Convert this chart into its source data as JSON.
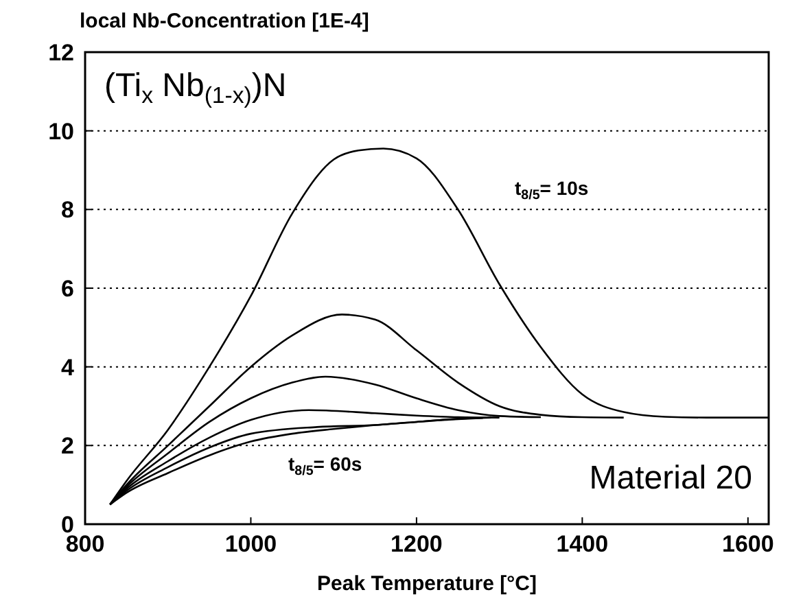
{
  "chart_data": {
    "type": "line",
    "ylabel": "local Nb-Concentration [1E-4]",
    "xlabel": "Peak Temperature [°C]",
    "annotations": [
      "(Ti$_{x}$ Nb$_{(1-x)}$)N",
      "t$_{8/5}$= 10s",
      "t$_{8/5}$= 60s",
      "Material 20"
    ],
    "xlim": [
      800,
      1625
    ],
    "xticks": [
      800,
      1000,
      1200,
      1400,
      1600
    ],
    "ylim": [
      0,
      12
    ],
    "yticks": [
      0,
      2,
      4,
      6,
      8,
      10,
      12
    ],
    "grid": "y",
    "line_style": "solid",
    "marker": "none",
    "series": [
      {
        "color": "#000000",
        "x": [
          830,
          850,
          900,
          950,
          1000,
          1050,
          1100,
          1130,
          1160,
          1200,
          1250,
          1300,
          1350,
          1400,
          1450,
          1500,
          1550,
          1625
        ],
        "values": [
          0.5,
          1.1,
          2.4,
          4.0,
          5.8,
          7.9,
          9.27,
          9.5,
          9.55,
          9.3,
          8.0,
          6.1,
          4.5,
          3.3,
          2.85,
          2.73,
          2.71,
          2.71
        ]
      },
      {
        "color": "#000000",
        "x": [
          830,
          850,
          900,
          950,
          1000,
          1050,
          1110,
          1150,
          1200,
          1250,
          1300,
          1350,
          1400,
          1450
        ],
        "values": [
          0.5,
          1.0,
          2.0,
          3.0,
          4.0,
          4.8,
          5.33,
          5.2,
          4.42,
          3.6,
          3.0,
          2.78,
          2.72,
          2.71
        ]
      },
      {
        "color": "#000000",
        "x": [
          830,
          850,
          900,
          950,
          1000,
          1050,
          1090,
          1150,
          1200,
          1250,
          1300,
          1350
        ],
        "values": [
          0.5,
          0.95,
          1.8,
          2.6,
          3.2,
          3.6,
          3.75,
          3.55,
          3.2,
          2.9,
          2.75,
          2.72
        ]
      },
      {
        "color": "#000000",
        "x": [
          830,
          850,
          900,
          950,
          1000,
          1070,
          1150,
          1200,
          1250,
          1300
        ],
        "values": [
          0.5,
          0.9,
          1.6,
          2.2,
          2.65,
          2.9,
          2.82,
          2.76,
          2.72,
          2.71
        ]
      },
      {
        "color": "#000000",
        "x": [
          830,
          850,
          900,
          950,
          1000,
          1080,
          1150,
          1200,
          1250,
          1290
        ],
        "values": [
          0.5,
          0.85,
          1.45,
          1.95,
          2.3,
          2.47,
          2.52,
          2.6,
          2.68,
          2.71
        ]
      },
      {
        "color": "#000000",
        "x": [
          830,
          850,
          900,
          950,
          1000,
          1050,
          1100,
          1150,
          1200,
          1250,
          1280
        ],
        "values": [
          0.5,
          0.8,
          1.3,
          1.75,
          2.1,
          2.3,
          2.42,
          2.52,
          2.6,
          2.67,
          2.7
        ]
      }
    ]
  }
}
